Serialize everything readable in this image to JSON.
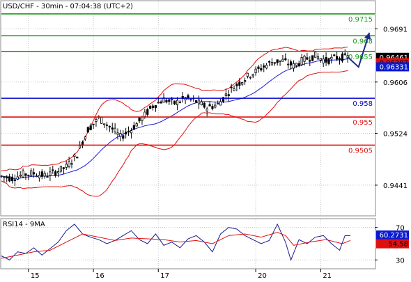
{
  "header": {
    "title": "USD/CHF - 30min - 07:04:38 (UTC+2)",
    "rsi_title": "RSI14 - 9MA"
  },
  "colors": {
    "green_level": "#1a9a1a",
    "red_level": "#e01010",
    "blue_level": "#0000cc",
    "candle": "#000000",
    "bollinger": "#e01010",
    "ma": "#1a1acc",
    "rsi_line": "#1a1a8c",
    "rsi_ma": "#e01010",
    "arrow": "#1a2a8c",
    "grid": "#c8c8c8"
  },
  "chart_data": [
    {
      "type": "candlestick",
      "title": "USD/CHF - 30min - 07:04:38 (UTC+2)",
      "ylim": [
        0.9393,
        0.9735
      ],
      "y_ticks": [
        "0.9691",
        "0.9606",
        "0.9524",
        "0.9441"
      ],
      "y_tick_values": [
        0.9691,
        0.9606,
        0.9524,
        0.9441
      ],
      "x_ticks": [
        "15",
        "16",
        "17",
        "20",
        "21"
      ],
      "levels": [
        {
          "label": "0.9715",
          "value": 0.9715,
          "color": "green"
        },
        {
          "label": "0.968",
          "value": 0.968,
          "color": "green"
        },
        {
          "label": "0.9655",
          "value": 0.9655,
          "color": "green"
        },
        {
          "label": "0.958",
          "value": 0.958,
          "color": "blue"
        },
        {
          "label": "0.955",
          "value": 0.955,
          "color": "red"
        },
        {
          "label": "0.9505",
          "value": 0.9505,
          "color": "red"
        }
      ],
      "price_badges": [
        {
          "label": "0.96461",
          "value": 0.96461,
          "style": "black"
        },
        {
          "label": "0.96387",
          "value": 0.96387,
          "style": "red"
        },
        {
          "label": "0.96331",
          "value": 0.96331,
          "style": "blue"
        }
      ],
      "close_path": [
        [
          0,
          0.9455
        ],
        [
          4,
          0.9452
        ],
        [
          8,
          0.9458
        ],
        [
          12,
          0.946
        ],
        [
          16,
          0.9456
        ],
        [
          20,
          0.9462
        ],
        [
          24,
          0.947
        ],
        [
          28,
          0.949
        ],
        [
          32,
          0.953
        ],
        [
          36,
          0.9548
        ],
        [
          40,
          0.9535
        ],
        [
          44,
          0.9518
        ],
        [
          48,
          0.953
        ],
        [
          52,
          0.9548
        ],
        [
          56,
          0.9568
        ],
        [
          60,
          0.9578
        ],
        [
          64,
          0.9572
        ],
        [
          68,
          0.958
        ],
        [
          72,
          0.9575
        ],
        [
          76,
          0.9565
        ],
        [
          80,
          0.957
        ],
        [
          84,
          0.959
        ],
        [
          88,
          0.9605
        ],
        [
          92,
          0.9618
        ],
        [
          96,
          0.9628
        ],
        [
          100,
          0.9638
        ],
        [
          104,
          0.964
        ],
        [
          108,
          0.9632
        ],
        [
          112,
          0.9642
        ],
        [
          116,
          0.9648
        ],
        [
          120,
          0.964
        ],
        [
          124,
          0.9645
        ],
        [
          128,
          0.9646
        ]
      ],
      "x_range": [
        0,
        138
      ],
      "forecast_arrow": [
        [
          128,
          0.9646
        ],
        [
          132,
          0.963
        ],
        [
          136,
          0.9685
        ]
      ]
    },
    {
      "type": "line",
      "title": "RSI14 - 9MA",
      "ylim": [
        20,
        80
      ],
      "y_ticks": [
        "70",
        "30"
      ],
      "y_tick_values": [
        70,
        30
      ],
      "badges": [
        {
          "label": "60.2731",
          "value": 60.2731,
          "style": "blue"
        },
        {
          "label": "54.58",
          "value": 54.58,
          "style": "red"
        }
      ],
      "rsi": [
        [
          0,
          35
        ],
        [
          3,
          30
        ],
        [
          6,
          40
        ],
        [
          9,
          38
        ],
        [
          12,
          45
        ],
        [
          15,
          36
        ],
        [
          18,
          44
        ],
        [
          21,
          52
        ],
        [
          24,
          66
        ],
        [
          27,
          74
        ],
        [
          30,
          62
        ],
        [
          33,
          58
        ],
        [
          36,
          55
        ],
        [
          39,
          50
        ],
        [
          42,
          54
        ],
        [
          45,
          60
        ],
        [
          48,
          66
        ],
        [
          51,
          55
        ],
        [
          54,
          50
        ],
        [
          57,
          62
        ],
        [
          60,
          48
        ],
        [
          63,
          52
        ],
        [
          66,
          45
        ],
        [
          69,
          56
        ],
        [
          72,
          60
        ],
        [
          75,
          52
        ],
        [
          78,
          40
        ],
        [
          81,
          62
        ],
        [
          84,
          70
        ],
        [
          87,
          68
        ],
        [
          90,
          60
        ],
        [
          93,
          55
        ],
        [
          96,
          50
        ],
        [
          99,
          54
        ],
        [
          102,
          74
        ],
        [
          105,
          52
        ],
        [
          107,
          30
        ],
        [
          110,
          55
        ],
        [
          113,
          50
        ],
        [
          116,
          58
        ],
        [
          119,
          60
        ],
        [
          122,
          50
        ],
        [
          125,
          42
        ],
        [
          127,
          60
        ],
        [
          129,
          60
        ]
      ],
      "rsi_ma": [
        [
          0,
          32
        ],
        [
          6,
          36
        ],
        [
          12,
          40
        ],
        [
          18,
          42
        ],
        [
          24,
          52
        ],
        [
          30,
          62
        ],
        [
          36,
          58
        ],
        [
          42,
          54
        ],
        [
          48,
          57
        ],
        [
          54,
          56
        ],
        [
          60,
          55
        ],
        [
          66,
          52
        ],
        [
          72,
          54
        ],
        [
          78,
          50
        ],
        [
          84,
          60
        ],
        [
          90,
          62
        ],
        [
          96,
          58
        ],
        [
          102,
          64
        ],
        [
          105,
          60
        ],
        [
          108,
          48
        ],
        [
          114,
          52
        ],
        [
          120,
          55
        ],
        [
          126,
          50
        ],
        [
          129,
          54
        ]
      ]
    }
  ]
}
